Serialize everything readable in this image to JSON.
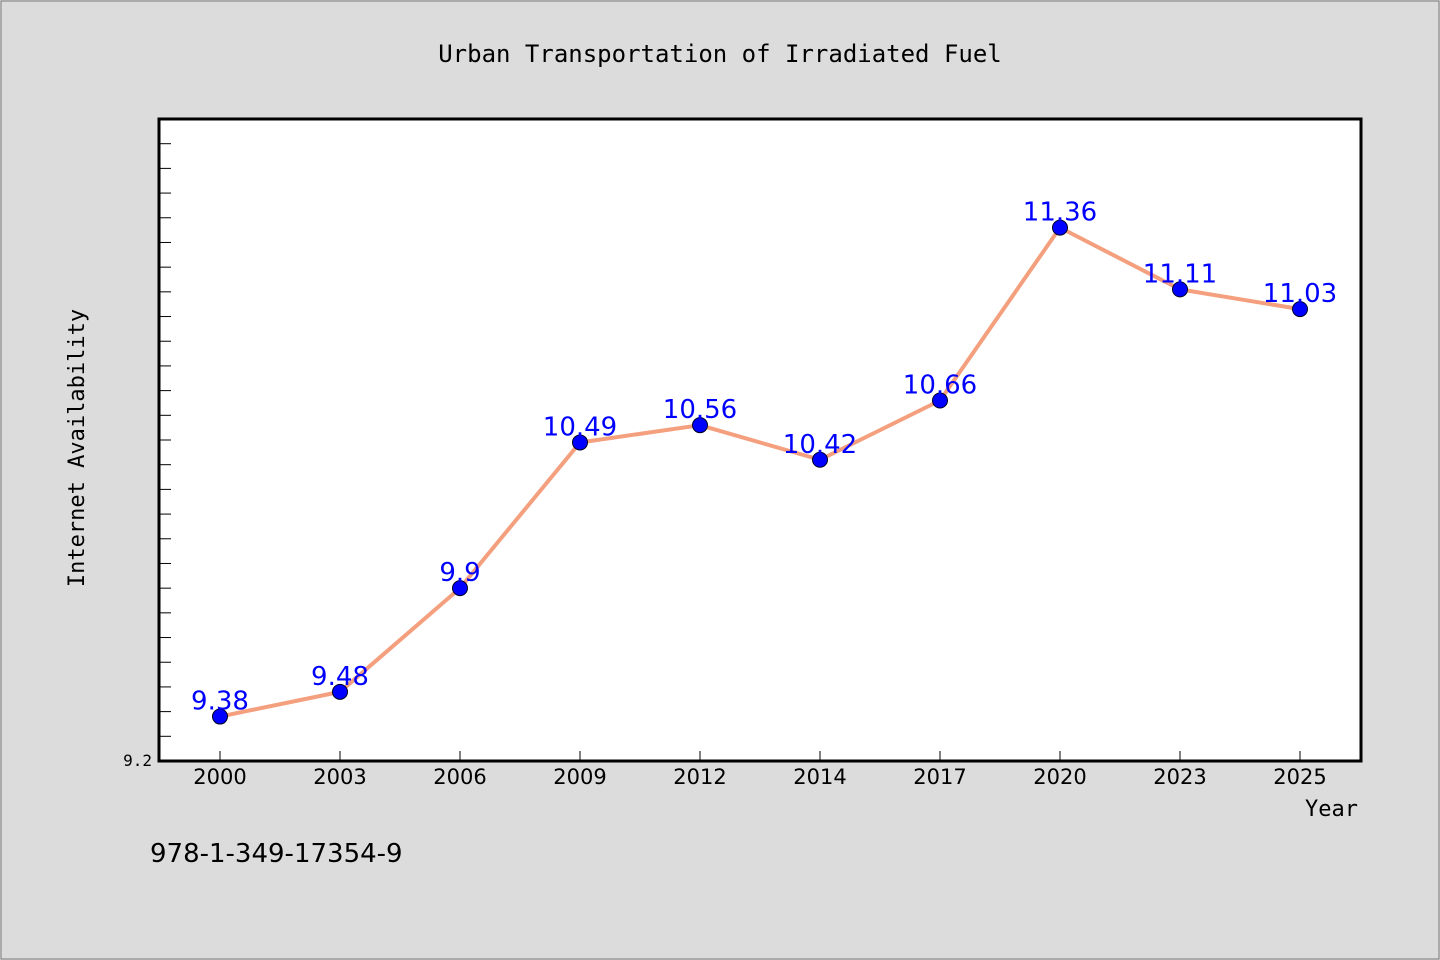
{
  "chart_data": {
    "type": "line",
    "title": "Urban Transportation of Irradiated Fuel",
    "xlabel": "Year",
    "ylabel": "Internet Availability",
    "categories": [
      "2000",
      "2003",
      "2006",
      "2009",
      "2012",
      "2014",
      "2017",
      "2020",
      "2023",
      "2025"
    ],
    "series": [
      {
        "values": [
          9.38,
          9.48,
          9.9,
          10.49,
          10.56,
          10.42,
          10.66,
          11.36,
          11.11,
          11.03
        ],
        "data_labels": [
          "9.38",
          "9.48",
          "9.9",
          "10.49",
          "10.56",
          "10.42",
          "10.66",
          "11.36",
          "11.11",
          "11.03"
        ]
      }
    ],
    "ylim": [
      9.2,
      11.8
    ],
    "ytick_labels": [
      "9.2"
    ],
    "grid": false,
    "line_color": "#f4a07e",
    "marker_color": "#0000ff",
    "label_color": "#0000ff"
  },
  "footer": {
    "isbn": "978-1-349-17354-9"
  }
}
